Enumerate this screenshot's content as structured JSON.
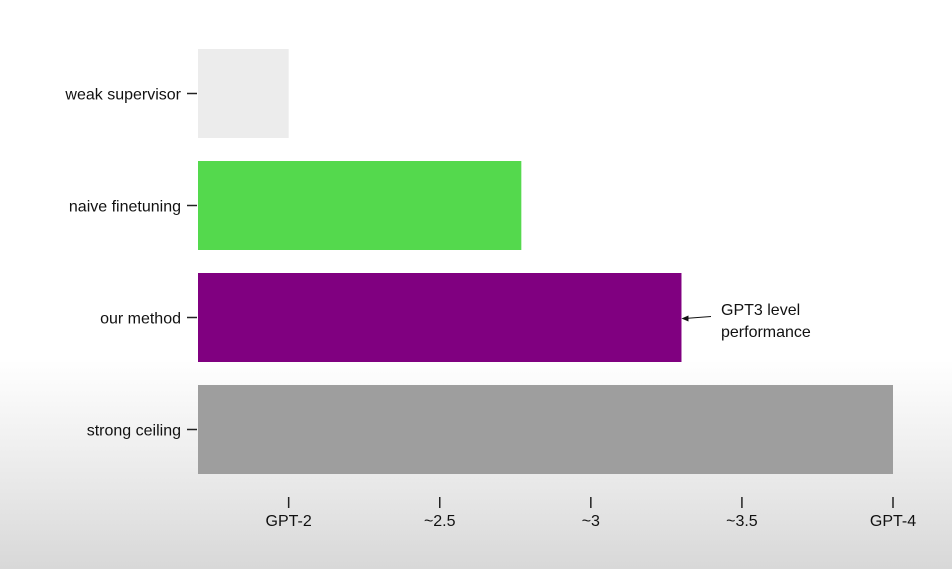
{
  "chart_data": {
    "type": "bar",
    "orientation": "horizontal",
    "categories": [
      "weak supervisor",
      "naive finetuning",
      "our method",
      "strong ceiling"
    ],
    "values": [
      2.0,
      2.77,
      3.3,
      4.0
    ],
    "colors": [
      "#ececec",
      "#54d94d",
      "#800080",
      "#9e9e9e"
    ],
    "x_ticks": [
      {
        "value": 2.0,
        "label": "GPT-2"
      },
      {
        "value": 2.5,
        "label": "~2.5"
      },
      {
        "value": 3.0,
        "label": "~3"
      },
      {
        "value": 3.5,
        "label": "~3.5"
      },
      {
        "value": 4.0,
        "label": "GPT-4"
      }
    ],
    "xlim": [
      1.7,
      4.0
    ],
    "annotation": {
      "lines": [
        "GPT3 level",
        "performance"
      ],
      "target_category": "our method"
    },
    "grid": false,
    "legend": "none",
    "title": "",
    "xlabel": "",
    "ylabel": ""
  }
}
